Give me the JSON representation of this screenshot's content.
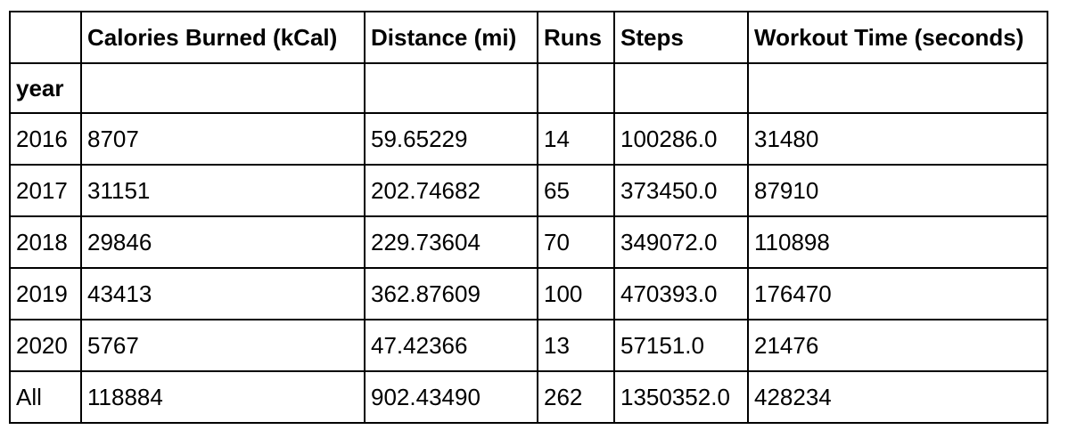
{
  "table": {
    "columns": [
      "",
      "Calories Burned (kCal)",
      "Distance (mi)",
      "Runs",
      "Steps",
      "Workout Time (seconds)"
    ],
    "index_name": "year",
    "rows": [
      [
        "2016",
        "8707",
        "59.65229",
        "14",
        "100286.0",
        "31480"
      ],
      [
        "2017",
        "31151",
        "202.74682",
        "65",
        "373450.0",
        "87910"
      ],
      [
        "2018",
        "29846",
        "229.73604",
        "70",
        "349072.0",
        "110898"
      ],
      [
        "2019",
        "43413",
        "362.87609",
        "100",
        "470393.0",
        "176470"
      ],
      [
        "2020",
        "5767",
        "47.42366",
        "13",
        "57151.0",
        "21476"
      ],
      [
        "All",
        "118884",
        "902.43490",
        "262",
        "1350352.0",
        "428234"
      ]
    ]
  }
}
